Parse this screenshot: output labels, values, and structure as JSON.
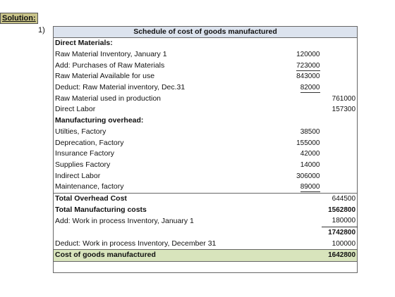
{
  "label": "Solution:",
  "number": "1)",
  "table": {
    "title": "Schedule of cost of goods manufactured",
    "rows": [
      {
        "label": "Direct Materials:"
      },
      {
        "label": "Raw Material Inventory, January 1",
        "amount": "120000"
      },
      {
        "label": "Add: Purchases of Raw Materials",
        "amount": "723000"
      },
      {
        "label": "Raw Material Available for use",
        "amount": "843000"
      },
      {
        "label": "Deduct: Raw Material inventory, Dec.31",
        "amount": "82000"
      },
      {
        "label": "Raw Material used in production",
        "total": "761000"
      },
      {
        "label": "Direct Labor",
        "total": "157300"
      },
      {
        "label": "Manufacturing overhead:"
      },
      {
        "label": "Utilties, Factory",
        "amount": "38500"
      },
      {
        "label": "Deprecation, Factory",
        "amount": "155000"
      },
      {
        "label": "Insurance Factory",
        "amount": "42000"
      },
      {
        "label": "Supplies Factory",
        "amount": "14000"
      },
      {
        "label": "Indirect Labor",
        "amount": "306000"
      },
      {
        "label": "Maintenance, factory",
        "amount": "89000"
      },
      {
        "label": "Total Overhead Cost",
        "total": "644500"
      },
      {
        "label": "Total Manufacturing costs",
        "total": "1562800"
      },
      {
        "label": "Add: Work in process Inventory, January 1",
        "total": "180000"
      },
      {
        "total": "1742800"
      },
      {
        "label": "Deduct: Work in process Inventory, December 31",
        "total": "100000"
      },
      {
        "label": "Cost of goods manufactured",
        "total": "1642800"
      }
    ]
  }
}
